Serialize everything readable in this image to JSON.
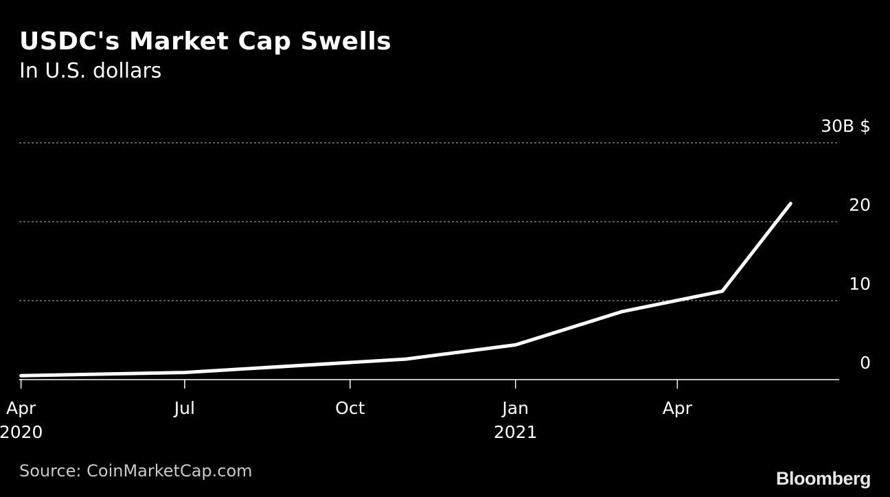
{
  "header": {
    "title": "USDC's Market Cap Swells",
    "subtitle": "In U.S. dollars"
  },
  "footer": {
    "source": "Source: CoinMarketCap.com",
    "brand": "Bloomberg"
  },
  "colors": {
    "background": "#000000",
    "line": "#ffffff",
    "grid": "#7a7a7a",
    "text": "#ffffff"
  },
  "chart_data": {
    "type": "line",
    "title": "USDC's Market Cap Swells",
    "subtitle": "In U.S. dollars",
    "xlabel": "",
    "ylabel": "",
    "y_unit": "$",
    "ylim": [
      0,
      30
    ],
    "yticks": [
      {
        "value": 30,
        "label": "30B $"
      },
      {
        "value": 20,
        "label": "20"
      },
      {
        "value": 10,
        "label": "10"
      },
      {
        "value": 0,
        "label": "0"
      }
    ],
    "xlim": [
      "2020-03-31",
      "2021-06-30"
    ],
    "xticks": [
      {
        "date": "2020-04-01",
        "label": "Apr",
        "year": "2020"
      },
      {
        "date": "2020-07-01",
        "label": "Jul",
        "year": ""
      },
      {
        "date": "2020-10-01",
        "label": "Oct",
        "year": ""
      },
      {
        "date": "2021-01-01",
        "label": "Jan",
        "year": "2021"
      },
      {
        "date": "2021-04-01",
        "label": "Apr",
        "year": ""
      }
    ],
    "grid": "horizontal dashed",
    "legend": "none",
    "series": [
      {
        "values": [
          {
            "x": "2020-04-01",
            "y": 0.5
          },
          {
            "x": "2020-07-01",
            "y": 0.9
          },
          {
            "x": "2020-11-01",
            "y": 2.6
          },
          {
            "x": "2021-01-01",
            "y": 4.4
          },
          {
            "x": "2021-03-01",
            "y": 8.6
          },
          {
            "x": "2021-04-26",
            "y": 11.2
          },
          {
            "x": "2021-06-03",
            "y": 22.3
          }
        ]
      }
    ]
  }
}
